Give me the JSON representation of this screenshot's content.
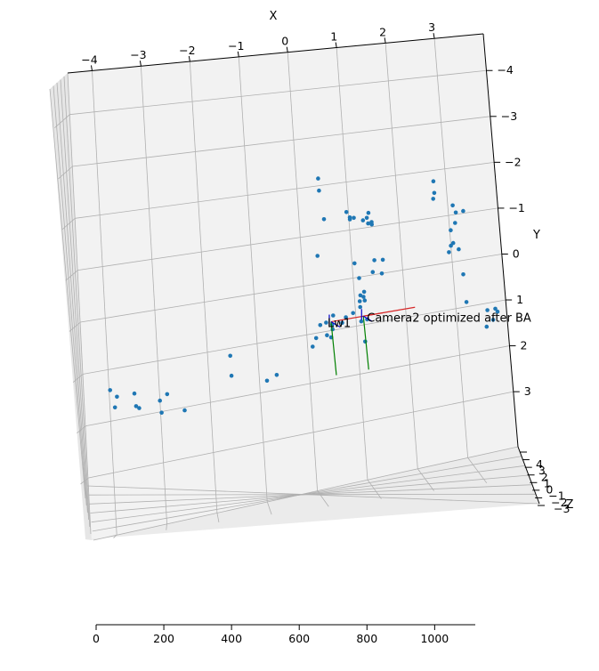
{
  "chart_data": [
    {
      "type": "scatter",
      "projection": "3d",
      "xlabel": "X",
      "ylabel": "Y",
      "zlabel": "Z",
      "x_ticks": [
        "−4",
        "−3",
        "−2",
        "−1",
        "0",
        "1",
        "2",
        "3"
      ],
      "y_ticks": [
        "−4",
        "−3",
        "−2",
        "−1",
        "0",
        "1",
        "2",
        "3"
      ],
      "z_ticks": [
        "4",
        "3",
        "2",
        "1",
        "0",
        "−1",
        "−2",
        "−3"
      ],
      "xlim": [
        -4.5,
        4.0
      ],
      "ylim": [
        -4.8,
        4.2
      ],
      "y_inverted": true,
      "grid": true,
      "point_color": "#1f77b4",
      "points": [
        {
          "x": 0.44,
          "y": -2.15
        },
        {
          "x": 0.44,
          "y": -1.9
        },
        {
          "x": 0.5,
          "y": -1.3
        },
        {
          "x": 0.96,
          "y": -1.38
        },
        {
          "x": 1.02,
          "y": -1.26
        },
        {
          "x": 1.1,
          "y": -1.24
        },
        {
          "x": 1.28,
          "y": -1.16
        },
        {
          "x": 1.36,
          "y": -1.2
        },
        {
          "x": 1.4,
          "y": -1.3
        },
        {
          "x": 1.38,
          "y": -1.08
        },
        {
          "x": 1.45,
          "y": -1.1
        },
        {
          "x": 1.45,
          "y": -1.05
        },
        {
          "x": 1.02,
          "y": -1.22
        },
        {
          "x": 0.32,
          "y": -0.57
        },
        {
          "x": 1.05,
          "y": -0.3
        },
        {
          "x": 1.45,
          "y": -0.3
        },
        {
          "x": 1.62,
          "y": -0.28
        },
        {
          "x": 1.4,
          "y": -0.06
        },
        {
          "x": 1.12,
          "y": 0.02
        },
        {
          "x": 1.58,
          "y": 0.0
        },
        {
          "x": 1.12,
          "y": 0.38
        },
        {
          "x": 1.18,
          "y": 0.42
        },
        {
          "x": 1.2,
          "y": 0.32
        },
        {
          "x": 1.1,
          "y": 0.5
        },
        {
          "x": 1.2,
          "y": 0.5
        },
        {
          "x": 0.55,
          "y": 0.7
        },
        {
          "x": 0.8,
          "y": 0.78
        },
        {
          "x": 0.95,
          "y": 0.72
        },
        {
          "x": 1.1,
          "y": 0.62
        },
        {
          "x": 0.28,
          "y": 0.85
        },
        {
          "x": 0.4,
          "y": 0.82
        },
        {
          "x": 0.52,
          "y": 0.88
        },
        {
          "x": 0.72,
          "y": 0.88
        },
        {
          "x": 1.1,
          "y": 0.92
        },
        {
          "x": 1.22,
          "y": 0.9
        },
        {
          "x": 0.52,
          "y": 0.98
        },
        {
          "x": 0.4,
          "y": 1.08
        },
        {
          "x": 0.18,
          "y": 1.1
        },
        {
          "x": 0.48,
          "y": 1.14
        },
        {
          "x": 0.1,
          "y": 1.26
        },
        {
          "x": 1.15,
          "y": 1.35
        },
        {
          "x": 2.75,
          "y": -1.77
        },
        {
          "x": 2.75,
          "y": -1.52
        },
        {
          "x": 2.72,
          "y": -1.4
        },
        {
          "x": 3.1,
          "y": -1.2
        },
        {
          "x": 3.15,
          "y": -1.04
        },
        {
          "x": 3.3,
          "y": -1.05
        },
        {
          "x": 3.12,
          "y": -0.82
        },
        {
          "x": 3.02,
          "y": -0.68
        },
        {
          "x": 3.05,
          "y": -0.4
        },
        {
          "x": 3.0,
          "y": -0.35
        },
        {
          "x": 3.15,
          "y": -0.25
        },
        {
          "x": 2.95,
          "y": -0.22
        },
        {
          "x": 3.2,
          "y": 0.3
        },
        {
          "x": 3.22,
          "y": 0.9
        },
        {
          "x": 3.62,
          "y": 1.15
        },
        {
          "x": 3.78,
          "y": 1.15
        },
        {
          "x": 3.82,
          "y": 1.22
        },
        {
          "x": 3.72,
          "y": 1.38
        },
        {
          "x": 3.58,
          "y": 1.5
        },
        {
          "x": -3.98,
          "y": 1.4
        },
        {
          "x": -3.85,
          "y": 1.55
        },
        {
          "x": -3.9,
          "y": 1.75
        },
        {
          "x": -3.5,
          "y": 1.55
        },
        {
          "x": -3.48,
          "y": 1.8
        },
        {
          "x": -3.42,
          "y": 1.85
        },
        {
          "x": -3.0,
          "y": 1.78
        },
        {
          "x": -2.85,
          "y": 1.68
        },
        {
          "x": -2.98,
          "y": 2.02
        },
        {
          "x": -2.52,
          "y": 2.06
        },
        {
          "x": -1.55,
          "y": 1.15
        },
        {
          "x": -1.55,
          "y": 1.55
        },
        {
          "x": -0.85,
          "y": 1.78
        },
        {
          "x": -0.65,
          "y": 1.7
        }
      ],
      "cameras": [
        {
          "x": 0.5,
          "y": 0.82,
          "label": "Lw1",
          "axis_colors": {
            "x": "#d62728",
            "y": "#008000",
            "z": "#0000cc"
          }
        },
        {
          "x": 1.15,
          "y": 0.82,
          "label": "Camera2 optimized after BA",
          "axis_colors": {
            "x": "#d62728",
            "y": "#008000",
            "z": "#0000cc"
          }
        }
      ]
    },
    {
      "type": "line",
      "xlim": [
        0,
        1120
      ],
      "x_ticks": [
        "0",
        "200",
        "400",
        "600",
        "800",
        "1000"
      ],
      "series": []
    }
  ]
}
